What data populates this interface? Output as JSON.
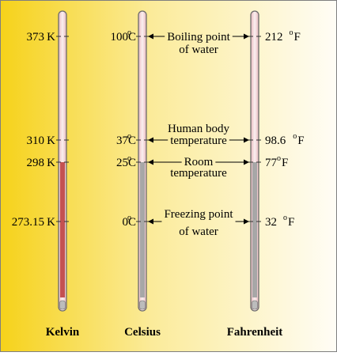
{
  "colors": {
    "background_left": "#f6d21a",
    "background_right": "#fffdf6",
    "border": "#7f7f7f",
    "tube_outline": "#6b6b6b",
    "mercury_red": "#c45151",
    "grey_fill": "#a7a7a7",
    "tube_highlight": "#f2d9dc",
    "bulb_fill": "#bcbcbc"
  },
  "thermometers": [
    {
      "name": "Kelvin",
      "fill": "red",
      "labels": [
        {
          "num": "373",
          "unit": "K"
        },
        {
          "num": "310",
          "unit": "K"
        },
        {
          "num": "298",
          "unit": "K"
        },
        {
          "num": "273.15",
          "unit": "K"
        }
      ]
    },
    {
      "name": "Celsius",
      "fill": "grey",
      "labels": [
        {
          "num": "100",
          "deg": "o",
          "unit": "C"
        },
        {
          "num": "37",
          "deg": "o",
          "unit": "C"
        },
        {
          "num": "25",
          "deg": "o",
          "unit": "C"
        },
        {
          "num": "0",
          "deg": "o",
          "unit": "C"
        }
      ]
    },
    {
      "name": "Fahrenheit",
      "fill": "grey",
      "labels": [
        {
          "num": "212",
          "deg": "o",
          "unit": "F"
        },
        {
          "num": "98.6",
          "deg": "o",
          "unit": "F"
        },
        {
          "num": "77",
          "deg": "o",
          "unit": "F"
        },
        {
          "num": "32",
          "deg": "o",
          "unit": "F"
        }
      ]
    }
  ],
  "annotations": [
    {
      "lines": [
        "Boiling point",
        "of water"
      ]
    },
    {
      "lines": [
        "Human body",
        "temperature"
      ]
    },
    {
      "lines": [
        "Room",
        "temperature"
      ]
    },
    {
      "lines": [
        "Freezing point",
        "of water"
      ]
    }
  ]
}
